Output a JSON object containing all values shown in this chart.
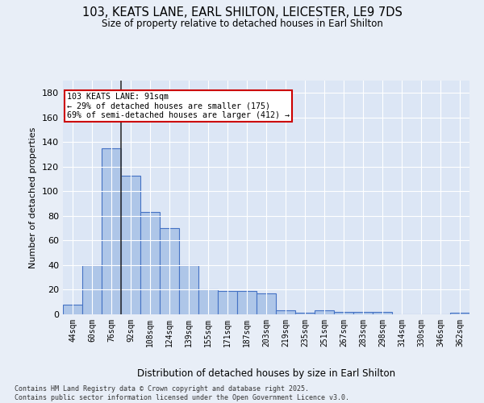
{
  "title_line1": "103, KEATS LANE, EARL SHILTON, LEICESTER, LE9 7DS",
  "title_line2": "Size of property relative to detached houses in Earl Shilton",
  "xlabel": "Distribution of detached houses by size in Earl Shilton",
  "ylabel": "Number of detached properties",
  "categories": [
    "44sqm",
    "60sqm",
    "76sqm",
    "92sqm",
    "108sqm",
    "124sqm",
    "139sqm",
    "155sqm",
    "171sqm",
    "187sqm",
    "203sqm",
    "219sqm",
    "235sqm",
    "251sqm",
    "267sqm",
    "283sqm",
    "298sqm",
    "314sqm",
    "330sqm",
    "346sqm",
    "362sqm"
  ],
  "values": [
    8,
    40,
    135,
    113,
    83,
    70,
    40,
    20,
    19,
    19,
    17,
    3,
    1,
    3,
    2,
    2,
    2,
    0,
    0,
    0,
    1
  ],
  "bar_color": "#aec6e8",
  "bar_edge_color": "#4472c4",
  "vline_x_index": 2,
  "vline_color": "#333333",
  "annotation_text": "103 KEATS LANE: 91sqm\n← 29% of detached houses are smaller (175)\n69% of semi-detached houses are larger (412) →",
  "annotation_box_color": "#ffffff",
  "annotation_box_edge_color": "#cc0000",
  "bg_color": "#e8eef7",
  "plot_bg_color": "#dce6f5",
  "grid_color": "#ffffff",
  "footer_text": "Contains HM Land Registry data © Crown copyright and database right 2025.\nContains public sector information licensed under the Open Government Licence v3.0.",
  "ylim": [
    0,
    190
  ],
  "yticks": [
    0,
    20,
    40,
    60,
    80,
    100,
    120,
    140,
    160,
    180
  ]
}
